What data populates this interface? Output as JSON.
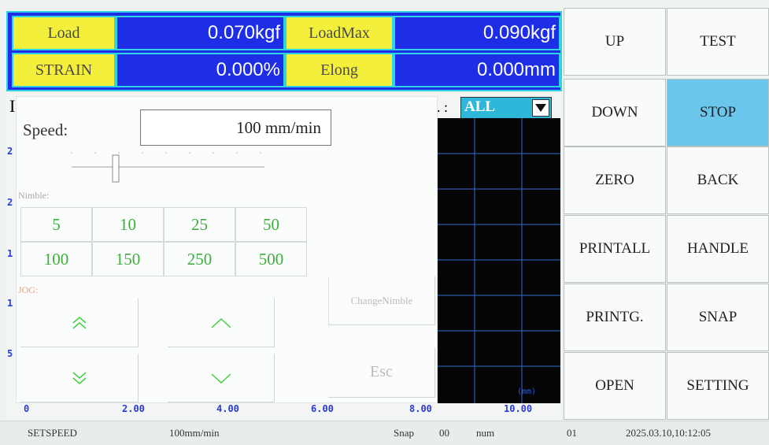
{
  "readouts": [
    {
      "label": "Load",
      "value": "0.070kgf"
    },
    {
      "label": "LoadMax",
      "value": "0.090kgf"
    },
    {
      "label": "STRAIN",
      "value": "0.000%"
    },
    {
      "label": "Elong",
      "value": "0.000mm"
    }
  ],
  "buttons": [
    "UP",
    "TEST",
    "DOWN",
    "STOP",
    "ZERO",
    "BACK",
    "PRINTALL",
    "HANDLE",
    "PRINTG.",
    "SNAP",
    "OPEN",
    "SETTING"
  ],
  "chart": {
    "header_fragment": "I",
    "filter_prefix": ". :",
    "filter": "ALL",
    "y_labels": [
      "2",
      "2",
      "1",
      "1",
      "5"
    ],
    "x_labels": [
      "0",
      "2.00",
      "4.00",
      "6.00",
      "8.00",
      "10.00"
    ],
    "unit": "(mm)"
  },
  "dialog": {
    "speed_label": "Speed:",
    "speed_value": "100 mm/min",
    "nimble_label": "Nimble:",
    "nimble_values": [
      "5",
      "10",
      "25",
      "50",
      "100",
      "150",
      "250",
      "500"
    ],
    "jog_label": "JOG:",
    "change_nimble": "ChangeNimble",
    "esc": "Esc"
  },
  "status_bar": [
    "SETSPEED",
    "100mm/min",
    "Snap",
    "00",
    "num",
    "01",
    "2025.03.10,10:12:05"
  ]
}
